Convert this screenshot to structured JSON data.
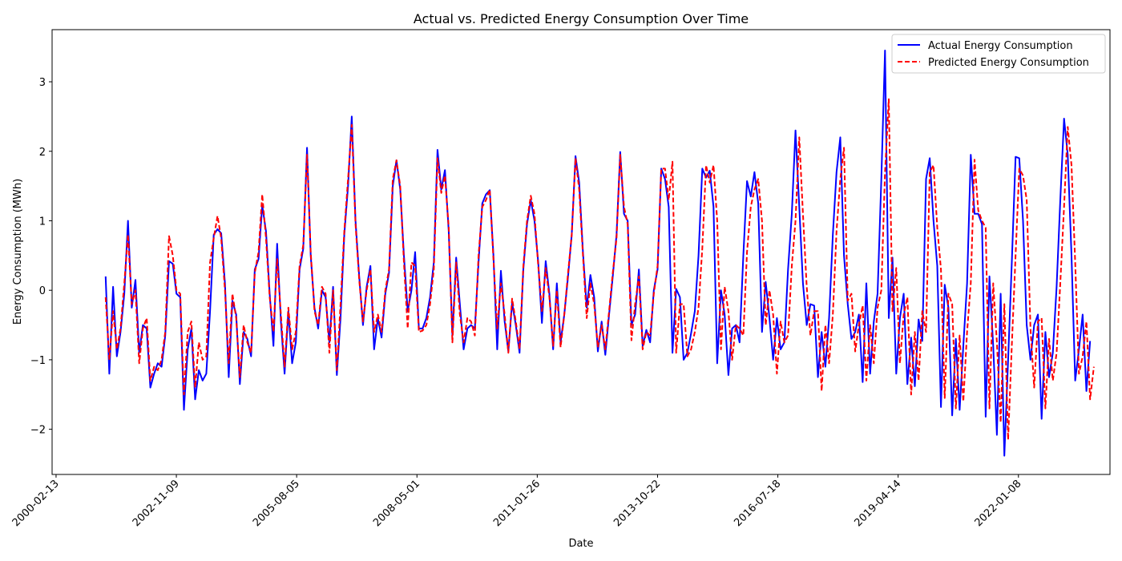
{
  "chart_data": {
    "type": "line",
    "title": "Actual vs. Predicted Energy Consumption Over Time",
    "xlabel": "Date",
    "ylabel": "Energy Consumption (MWh)",
    "x_axis_type": "date",
    "x_range": [
      "2000-01-11",
      "2024-02-08"
    ],
    "xlim": [
      "2000-01-11",
      "2024-02-08"
    ],
    "x_ticks": [
      "2000-02-13",
      "2002-11-09",
      "2005-08-05",
      "2008-05-01",
      "2011-01-26",
      "2013-10-22",
      "2016-07-18",
      "2019-04-14",
      "2022-01-08"
    ],
    "ylim": [
      -2.65,
      3.75
    ],
    "y_ticks": [
      -2,
      -1,
      0,
      1,
      2,
      3
    ],
    "grid": false,
    "legend_position": "top-right",
    "series": [
      {
        "name": "Actual Energy Consumption",
        "color": "#0000ff",
        "line_style": "solid",
        "values": [
          0.2,
          -1.2,
          0.05,
          -0.95,
          -0.6,
          -0.05,
          1.0,
          -0.25,
          0.15,
          -0.9,
          -0.5,
          -0.55,
          -1.4,
          -1.2,
          -1.05,
          -1.1,
          -0.65,
          0.42,
          0.38,
          -0.05,
          -0.1,
          -1.72,
          -0.85,
          -0.55,
          -1.57,
          -1.15,
          -1.3,
          -1.2,
          -0.3,
          0.8,
          0.88,
          0.82,
          0.1,
          -1.25,
          -0.15,
          -0.35,
          -1.35,
          -0.6,
          -0.7,
          -0.95,
          0.3,
          0.45,
          1.22,
          0.85,
          -0.05,
          -0.8,
          0.67,
          -0.45,
          -1.2,
          -0.3,
          -1.05,
          -0.75,
          0.3,
          0.6,
          2.05,
          0.5,
          -0.25,
          -0.55,
          0.0,
          -0.1,
          -0.75,
          0.05,
          -1.22,
          -0.4,
          0.8,
          1.5,
          2.5,
          1.0,
          0.2,
          -0.5,
          0.05,
          0.35,
          -0.85,
          -0.4,
          -0.68,
          -0.05,
          0.25,
          1.5,
          1.87,
          1.45,
          0.5,
          -0.3,
          0.0,
          0.55,
          -0.55,
          -0.55,
          -0.4,
          -0.1,
          0.4,
          2.02,
          1.45,
          1.73,
          0.85,
          -0.65,
          0.47,
          -0.2,
          -0.85,
          -0.55,
          -0.5,
          -0.55,
          0.4,
          1.25,
          1.38,
          1.44,
          0.5,
          -0.85,
          0.28,
          -0.45,
          -0.88,
          -0.18,
          -0.5,
          -0.9,
          0.3,
          0.95,
          1.3,
          1.0,
          0.4,
          -0.47,
          0.42,
          -0.05,
          -0.85,
          0.1,
          -0.75,
          -0.35,
          0.2,
          0.8,
          1.93,
          1.55,
          0.55,
          -0.25,
          0.22,
          -0.1,
          -0.88,
          -0.45,
          -0.93,
          -0.35,
          0.2,
          0.8,
          1.99,
          1.1,
          1.0,
          -0.5,
          -0.35,
          0.3,
          -0.8,
          -0.57,
          -0.75,
          0.0,
          0.3,
          1.75,
          1.6,
          1.2,
          -0.9,
          0.02,
          -0.1,
          -1.0,
          -0.9,
          -0.62,
          -0.3,
          0.5,
          1.75,
          1.62,
          1.72,
          1.2,
          -1.05,
          0.0,
          -0.35,
          -1.22,
          -0.55,
          -0.5,
          -0.75,
          0.5,
          1.57,
          1.35,
          1.7,
          1.25,
          -0.6,
          0.12,
          -0.4,
          -1.0,
          -0.4,
          -0.85,
          -0.75,
          0.3,
          1.1,
          2.3,
          1.2,
          0.1,
          -0.5,
          -0.2,
          -0.22,
          -1.25,
          -0.6,
          -1.1,
          -0.4,
          0.8,
          1.7,
          2.2,
          0.5,
          -0.2,
          -0.7,
          -0.6,
          -0.35,
          -1.32,
          0.1,
          -1.2,
          -0.45,
          -0.05,
          1.6,
          3.45,
          -0.4,
          0.47,
          -1.2,
          -0.4,
          -0.05,
          -1.35,
          -0.68,
          -1.38,
          -0.42,
          -0.73,
          1.6,
          1.9,
          1.0,
          0.35,
          -1.68,
          0.08,
          -0.25,
          -1.8,
          -0.7,
          -1.72,
          -0.8,
          0.1,
          1.95,
          1.1,
          1.1,
          0.95,
          -1.82,
          0.2,
          -0.8,
          -2.08,
          -0.05,
          -2.38,
          -1.0,
          0.4,
          1.92,
          1.9,
          1.0,
          -0.5,
          -1.0,
          -0.5,
          -0.35,
          -1.85,
          -0.6,
          -1.25,
          -0.9,
          0.05,
          1.3,
          2.47,
          1.95,
          0.5,
          -1.3,
          -0.85,
          -0.35,
          -1.45,
          -0.73
        ]
      },
      {
        "name": "Predicted Energy Consumption",
        "color": "#ff0000",
        "line_style": "dashed",
        "values": [
          -0.1,
          -1.0,
          -0.3,
          -0.85,
          -0.55,
          0.1,
          0.8,
          -0.2,
          0.0,
          -1.05,
          -0.55,
          -0.4,
          -1.3,
          -1.1,
          -1.15,
          -1.0,
          -0.6,
          0.78,
          0.5,
          0.0,
          -0.05,
          -1.5,
          -0.6,
          -0.45,
          -1.4,
          -0.75,
          -1.0,
          -0.95,
          0.4,
          0.75,
          1.07,
          0.75,
          0.0,
          -1.05,
          -0.05,
          -0.4,
          -1.25,
          -0.5,
          -0.75,
          -0.9,
          0.25,
          0.55,
          1.38,
          0.75,
          -0.1,
          -0.6,
          0.45,
          -0.35,
          -1.1,
          -0.25,
          -0.85,
          -0.6,
          0.35,
          0.65,
          1.95,
          0.55,
          -0.3,
          -0.5,
          0.05,
          -0.05,
          -0.9,
          0.0,
          -1.15,
          -0.2,
          0.85,
          1.6,
          2.38,
          0.95,
          0.15,
          -0.45,
          0.0,
          0.3,
          -0.6,
          -0.35,
          -0.6,
          0.0,
          0.3,
          1.6,
          1.87,
          1.5,
          0.4,
          -0.55,
          0.4,
          0.35,
          -0.6,
          -0.58,
          -0.5,
          -0.2,
          0.3,
          1.9,
          1.4,
          1.65,
          0.9,
          -0.75,
          0.4,
          -0.35,
          -0.75,
          -0.4,
          -0.45,
          -0.65,
          0.5,
          1.2,
          1.3,
          1.45,
          0.45,
          -0.55,
          0.1,
          -0.35,
          -0.9,
          -0.12,
          -0.45,
          -0.85,
          0.35,
          1.0,
          1.36,
          1.1,
          0.35,
          -0.3,
          0.32,
          -0.1,
          -0.8,
          0.0,
          -0.82,
          -0.35,
          0.25,
          0.8,
          1.9,
          1.45,
          0.5,
          -0.4,
          0.1,
          -0.2,
          -0.82,
          -0.5,
          -0.85,
          -0.3,
          0.25,
          0.75,
          1.95,
          1.2,
          0.95,
          -0.72,
          -0.2,
          0.2,
          -0.85,
          -0.6,
          -0.65,
          -0.05,
          0.35,
          1.75,
          1.75,
          1.3,
          1.85,
          -0.9,
          -0.2,
          -0.2,
          -0.95,
          -0.85,
          -0.6,
          -0.25,
          0.6,
          1.8,
          1.55,
          1.8,
          1.0,
          -0.85,
          0.05,
          -0.3,
          -1.0,
          -0.5,
          -0.55,
          -0.65,
          0.55,
          1.2,
          1.45,
          1.6,
          1.0,
          -0.5,
          0.0,
          -0.35,
          -1.2,
          -0.45,
          -0.75,
          -0.65,
          0.35,
          1.0,
          2.2,
          1.1,
          0.05,
          -0.65,
          -0.3,
          -0.3,
          -1.45,
          -0.5,
          -1.05,
          -0.35,
          0.85,
          1.6,
          2.05,
          -0.15,
          -0.05,
          -0.88,
          -0.5,
          -0.22,
          -1.3,
          -0.5,
          -1.05,
          -0.25,
          0.0,
          1.7,
          2.75,
          -0.3,
          0.32,
          -1.05,
          -0.35,
          -0.1,
          -1.5,
          -0.6,
          -1.3,
          -0.3,
          -0.6,
          1.7,
          1.8,
          0.9,
          0.3,
          -1.55,
          -0.05,
          -0.2,
          -1.7,
          -0.65,
          -1.6,
          -0.6,
          0.1,
          1.88,
          1.15,
          1.0,
          0.9,
          -1.7,
          0.1,
          -0.75,
          -1.9,
          -0.2,
          -2.15,
          -0.8,
          0.5,
          1.75,
          1.65,
          1.3,
          -0.55,
          -1.4,
          -0.45,
          -0.4,
          -1.7,
          -0.7,
          -1.3,
          -0.9,
          0.1,
          1.2,
          2.35,
          1.8,
          0.4,
          -1.2,
          -0.95,
          -0.45,
          -1.57,
          -1.1
        ]
      }
    ],
    "x_start": "2001-03-31",
    "x_step_days": 31
  }
}
